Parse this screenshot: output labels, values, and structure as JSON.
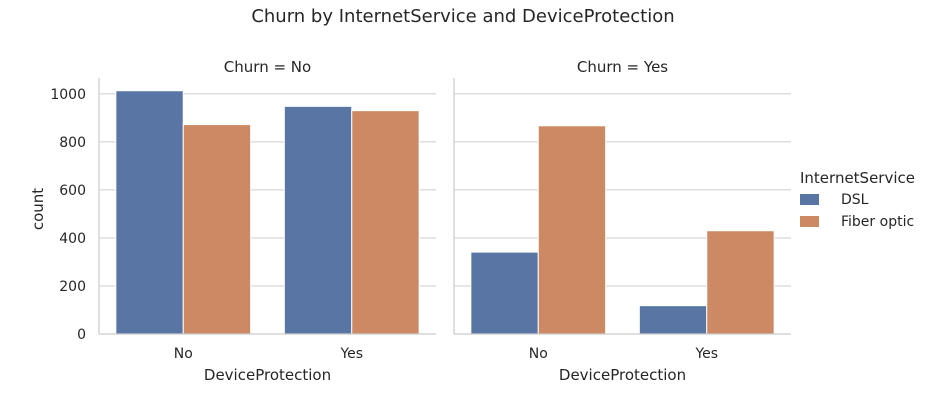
{
  "chart_data": {
    "type": "bar",
    "title": "Churn by InternetService and DeviceProtection",
    "facets": [
      {
        "title": "Churn = No",
        "categories": [
          "No",
          "Yes"
        ],
        "series": [
          {
            "name": "DSL",
            "values": [
              1013,
              948
            ]
          },
          {
            "name": "Fiber optic",
            "values": [
              872,
              930
            ]
          }
        ]
      },
      {
        "title": "Churn = Yes",
        "categories": [
          "No",
          "Yes"
        ],
        "series": [
          {
            "name": "DSL",
            "values": [
              341,
              118
            ]
          },
          {
            "name": "Fiber optic",
            "values": [
              867,
              430
            ]
          }
        ]
      }
    ],
    "xlabel": "DeviceProtection",
    "ylabel": "count",
    "ylim": [
      0,
      1066
    ],
    "yticks": [
      0,
      200,
      400,
      600,
      800,
      1000
    ],
    "grid": true,
    "shared_y": true,
    "legend": {
      "title": "InternetService",
      "placement": "right",
      "entries": [
        "DSL",
        "Fiber optic"
      ]
    },
    "colors": {
      "DSL": "#5875a4",
      "Fiber optic": "#cc8963"
    }
  }
}
